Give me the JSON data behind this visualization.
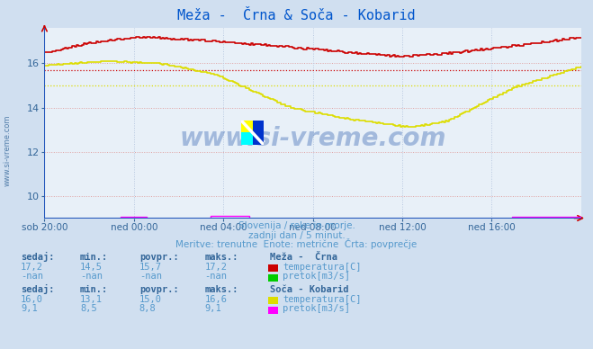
{
  "title": "Meža -  Črna & Soča - Kobarid",
  "title_color": "#0055cc",
  "bg_color": "#d0dff0",
  "plot_bg_color": "#e8f0f8",
  "grid_color_h": "#e8a0a0",
  "grid_color_v": "#c8d0e8",
  "xlim": [
    0,
    288
  ],
  "ylim": [
    9.0,
    17.6
  ],
  "yticks": [
    10,
    12,
    14,
    16
  ],
  "xtick_labels": [
    "sob 20:00",
    "ned 00:00",
    "ned 04:00",
    "ned 08:00",
    "ned 12:00",
    "ned 16:00"
  ],
  "xtick_positions": [
    0,
    48,
    96,
    144,
    192,
    240
  ],
  "watermark_text": "www.si-vreme.com",
  "sub_text1": "Slovenija / reke in morje.",
  "sub_text2": "zadnji dan / 5 minut.",
  "sub_text3": "Meritve: trenutne  Enote: metrične  Črta: povprečje",
  "text_color": "#5599cc",
  "label_color": "#336699",
  "mezacerna_temp_color": "#cc0000",
  "mezacerna_pretok_color": "#00cc00",
  "soca_temp_color": "#dddd00",
  "soca_pretok_color": "#ff00ff",
  "avg_meza_temp": 15.7,
  "avg_soca_temp": 15.0,
  "avg_soca_pretok": 8.8,
  "side_text": "www.si-vreme.com",
  "table_data": {
    "meza": {
      "sedaj": "17,2",
      "min": "14,5",
      "povpr": "15,7",
      "maks": "17,2",
      "label": "Meža -  Črna",
      "temp_label": "temperatura[C]",
      "pretok_label": "pretok[m3/s]",
      "sedaj_pretok": "-nan",
      "min_pretok": "-nan",
      "povpr_pretok": "-nan",
      "maks_pretok": "-nan"
    },
    "soca": {
      "sedaj": "16,0",
      "min": "13,1",
      "povpr": "15,0",
      "maks": "16,6",
      "label": "Soča - Kobarid",
      "temp_label": "temperatura[C]",
      "pretok_label": "pretok[m3/s]",
      "sedaj_pretok": "9,1",
      "min_pretok": "8,5",
      "povpr_pretok": "8,8",
      "maks_pretok": "9,1"
    }
  }
}
